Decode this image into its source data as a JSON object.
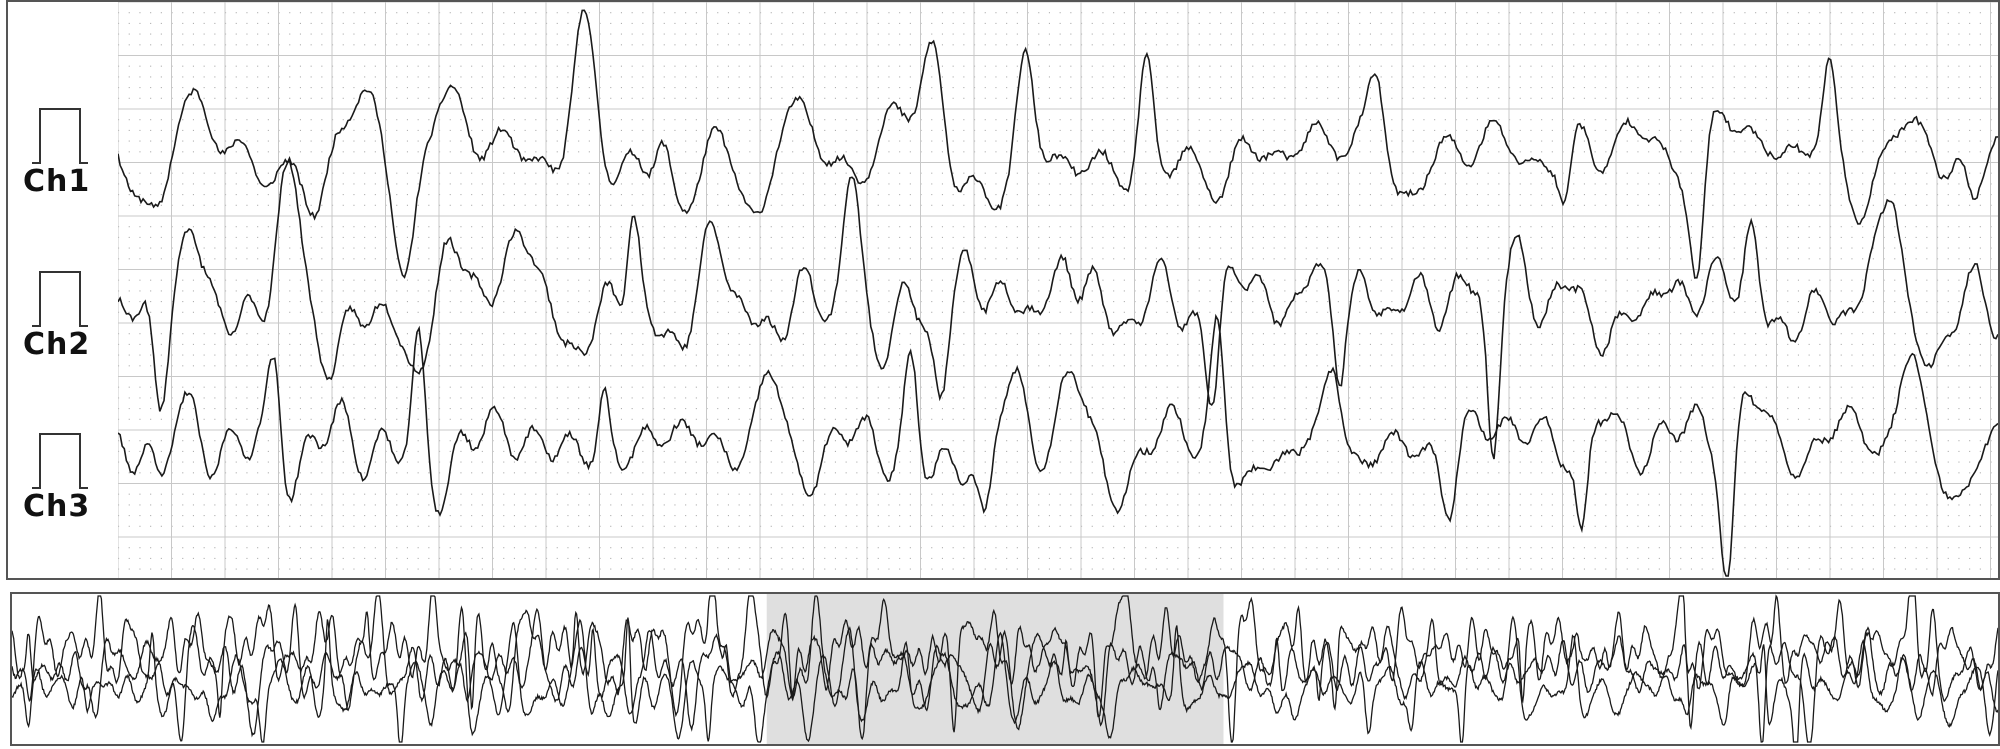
{
  "chart_data": {
    "type": "line",
    "title": "",
    "xlabel": "",
    "ylabel": "",
    "grid": true,
    "series": [
      {
        "name": "Ch1"
      },
      {
        "name": "Ch2"
      },
      {
        "name": "Ch3"
      }
    ]
  },
  "overview": {
    "selection": {
      "start_fraction": 0.38,
      "end_fraction": 0.61
    }
  },
  "colors": {
    "trace": "#1a1a1a",
    "grid_major": "#c8c8c8",
    "grid_dot": "#b0b0b0",
    "border": "#555555",
    "selection_fill": "#d9d9d9"
  }
}
